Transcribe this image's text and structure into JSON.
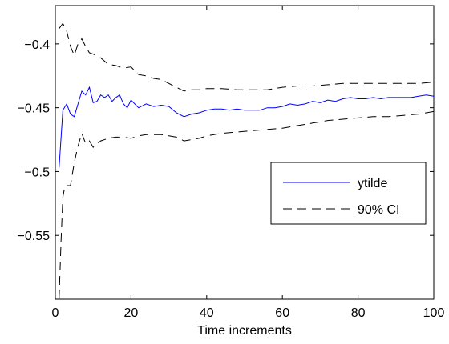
{
  "chart_data": {
    "type": "line",
    "title": "",
    "xlabel": "Time increments",
    "ylabel": "",
    "xlim": [
      0,
      100
    ],
    "ylim": [
      -0.6,
      -0.37
    ],
    "xticks": [
      0,
      20,
      40,
      60,
      80,
      100
    ],
    "xtick_labels": [
      "0",
      "20",
      "40",
      "60",
      "80",
      "100"
    ],
    "yticks": [
      -0.4,
      -0.45,
      -0.5,
      -0.55
    ],
    "ytick_labels": [
      "−0.4",
      "−0.45",
      "−0.5",
      "−0.55"
    ],
    "grid": false,
    "legend_position": "right",
    "series": [
      {
        "name": "ytilde",
        "color": "#0000ff",
        "style": "solid",
        "x": [
          1,
          2,
          3,
          4,
          5,
          6,
          7,
          8,
          9,
          10,
          11,
          12,
          13,
          14,
          15,
          16,
          17,
          18,
          19,
          20,
          22,
          24,
          26,
          28,
          30,
          32,
          34,
          36,
          38,
          40,
          42,
          44,
          46,
          48,
          50,
          52,
          54,
          56,
          58,
          60,
          62,
          64,
          66,
          68,
          70,
          72,
          74,
          76,
          78,
          80,
          82,
          84,
          86,
          88,
          90,
          92,
          94,
          96,
          98,
          100
        ],
        "y": [
          -0.497,
          -0.452,
          -0.447,
          -0.455,
          -0.457,
          -0.447,
          -0.437,
          -0.44,
          -0.434,
          -0.446,
          -0.445,
          -0.44,
          -0.442,
          -0.44,
          -0.445,
          -0.442,
          -0.44,
          -0.447,
          -0.45,
          -0.444,
          -0.45,
          -0.447,
          -0.449,
          -0.448,
          -0.449,
          -0.454,
          -0.457,
          -0.455,
          -0.454,
          -0.452,
          -0.451,
          -0.451,
          -0.452,
          -0.451,
          -0.452,
          -0.452,
          -0.452,
          -0.45,
          -0.45,
          -0.449,
          -0.447,
          -0.448,
          -0.447,
          -0.445,
          -0.446,
          -0.444,
          -0.445,
          -0.443,
          -0.442,
          -0.443,
          -0.443,
          -0.442,
          -0.443,
          -0.442,
          -0.442,
          -0.442,
          -0.442,
          -0.441,
          -0.44,
          -0.441
        ]
      },
      {
        "name": "90% CI",
        "color": "#000000",
        "style": "dashed",
        "x": [
          1,
          2,
          3,
          4,
          5,
          6,
          7,
          8,
          9,
          10,
          12,
          14,
          16,
          18,
          20,
          22,
          24,
          26,
          28,
          30,
          32,
          34,
          36,
          38,
          40,
          44,
          48,
          52,
          56,
          60,
          64,
          68,
          72,
          76,
          80,
          84,
          88,
          92,
          96,
          100
        ],
        "y": [
          -0.388,
          -0.384,
          -0.39,
          -0.402,
          -0.409,
          -0.4,
          -0.396,
          -0.402,
          -0.407,
          -0.408,
          -0.411,
          -0.416,
          -0.417,
          -0.419,
          -0.418,
          -0.424,
          -0.425,
          -0.427,
          -0.428,
          -0.431,
          -0.434,
          -0.437,
          -0.436,
          -0.436,
          -0.435,
          -0.435,
          -0.436,
          -0.436,
          -0.436,
          -0.434,
          -0.433,
          -0.433,
          -0.432,
          -0.431,
          -0.431,
          -0.431,
          -0.431,
          -0.431,
          -0.431,
          -0.43
        ]
      },
      {
        "name": "90% CI (lower)",
        "color": "#000000",
        "style": "dashed",
        "x": [
          1,
          1.5,
          2,
          2.5,
          3,
          4,
          5,
          6,
          7,
          8,
          9,
          10,
          12,
          14,
          16,
          18,
          20,
          22,
          24,
          26,
          28,
          30,
          32,
          34,
          36,
          38,
          40,
          44,
          48,
          52,
          56,
          60,
          64,
          68,
          72,
          76,
          80,
          84,
          88,
          92,
          96,
          100
        ],
        "y": [
          -0.6,
          -0.555,
          -0.52,
          -0.512,
          -0.511,
          -0.511,
          -0.493,
          -0.48,
          -0.47,
          -0.478,
          -0.476,
          -0.481,
          -0.476,
          -0.474,
          -0.473,
          -0.473,
          -0.474,
          -0.472,
          -0.471,
          -0.471,
          -0.471,
          -0.472,
          -0.473,
          -0.476,
          -0.475,
          -0.474,
          -0.472,
          -0.47,
          -0.469,
          -0.468,
          -0.467,
          -0.466,
          -0.464,
          -0.462,
          -0.46,
          -0.459,
          -0.458,
          -0.457,
          -0.457,
          -0.456,
          -0.455,
          -0.453
        ]
      }
    ],
    "legend": [
      {
        "label": "ytilde",
        "color": "#0000ff",
        "style": "solid"
      },
      {
        "label": "90% CI",
        "color": "#000000",
        "style": "dashed"
      }
    ]
  }
}
